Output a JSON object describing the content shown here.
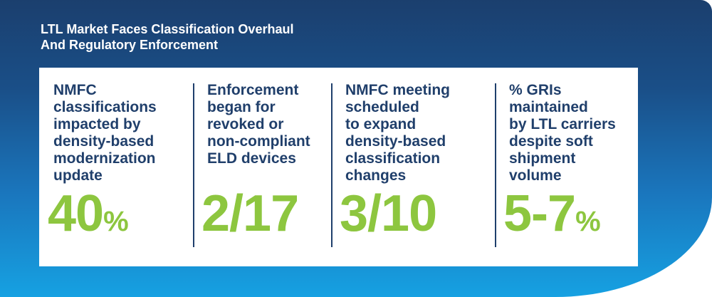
{
  "title": {
    "line1": "LTL Market Faces Classification Overhaul",
    "line2": "And Regulatory Enforcement"
  },
  "stats": [
    {
      "desc_lines": [
        "NMFC",
        "classifications",
        "impacted by",
        "density-based",
        "modernization",
        "update"
      ],
      "value": "40",
      "suffix": "%"
    },
    {
      "desc_lines": [
        "Enforcement",
        "began for",
        "revoked or",
        "non-compliant",
        "ELD devices"
      ],
      "value": "2/17",
      "suffix": ""
    },
    {
      "desc_lines": [
        "NMFC meeting",
        "scheduled",
        "to expand",
        "density-based",
        "classification",
        "changes"
      ],
      "value": "3/10",
      "suffix": ""
    },
    {
      "desc_lines": [
        "% GRIs",
        "maintained",
        "by LTL carriers",
        "despite soft",
        "shipment",
        "volume"
      ],
      "value": "5-7",
      "suffix": "%"
    }
  ],
  "colors": {
    "navy": "#1b3f6e",
    "blue": "#16a1e2",
    "text": "#203f6b",
    "accent_green": "#8dc63f"
  }
}
